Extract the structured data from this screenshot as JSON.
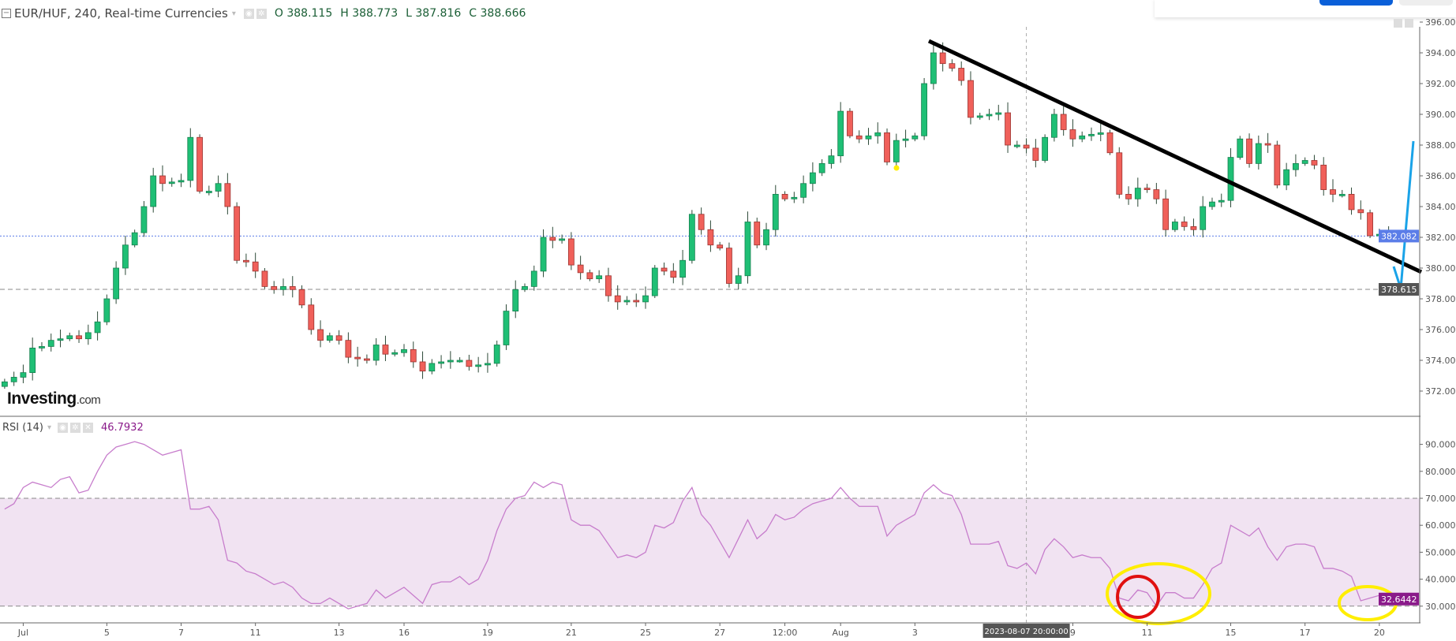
{
  "header": {
    "title": "EUR/HUF, 240, Real-time Currencies",
    "open": "O 388.115",
    "high": "H 388.773",
    "low": "L 387.816",
    "close": "C 388.666"
  },
  "logo": {
    "text": "Investing",
    "suffix": ".com"
  },
  "rsi_header": {
    "label": "RSI (14)",
    "value": "46.7932"
  },
  "colors": {
    "up": "#1fbf75",
    "down": "#f0605a",
    "rsi": "#c77dcc",
    "rsi_band": "#f1e3f2",
    "trend": "#000000",
    "arrow": "#1aa3e8",
    "highlight": "#ffee00",
    "circle": "#e01010",
    "last_price": "#5b7de8",
    "rsi_badge": "#8a1a8a"
  },
  "chart_data": [
    {
      "type": "candlestick",
      "title": "EUR/HUF, 240",
      "ylim": [
        370.5,
        396.5
      ],
      "yticks": [
        "396.000",
        "394.000",
        "392.000",
        "390.000",
        "388.000",
        "386.000",
        "384.000",
        "382.000",
        "380.000",
        "378.000",
        "376.000",
        "374.000",
        "372.000"
      ],
      "ytick_values": [
        396,
        394,
        392,
        390,
        388,
        386,
        384,
        382,
        380,
        378,
        376,
        374,
        372
      ],
      "last_price": "382.082",
      "last_price_value": 382.082,
      "level_label": "378.615",
      "level_value": 378.615,
      "first_open": 372.3,
      "closes": [
        372.6,
        372.9,
        373.2,
        374.8,
        374.9,
        375.3,
        375.4,
        375.6,
        375.4,
        375.8,
        376.5,
        378,
        380,
        381.5,
        382.3,
        384,
        386,
        385.5,
        385.6,
        385.7,
        388.5,
        385,
        385,
        385.5,
        384,
        380.5,
        380.4,
        379.8,
        378.8,
        378.6,
        378.8,
        378.6,
        377.6,
        376,
        375.3,
        375.6,
        375.3,
        374.2,
        374.1,
        374,
        375,
        374.4,
        374.5,
        374.7,
        373.9,
        373.3,
        373.8,
        373.9,
        374,
        374,
        373.6,
        373.7,
        373.8,
        375,
        377.2,
        378.6,
        378.8,
        379.8,
        382,
        381.8,
        381.9,
        380.2,
        379.7,
        379.3,
        379.5,
        378.2,
        377.8,
        377.9,
        377.8,
        378.2,
        380,
        379.8,
        379.4,
        380.5,
        383.5,
        382.5,
        381.5,
        381.3,
        379,
        379.5,
        383,
        381.5,
        382.5,
        384.8,
        384.5,
        384.6,
        385.5,
        386.2,
        386.8,
        387.3,
        390.2,
        388.6,
        388.4,
        388.6,
        388.8,
        386.9,
        388.3,
        388.4,
        388.6,
        392,
        394,
        393.3,
        393,
        392.2,
        389.8,
        389.9,
        390,
        390.1,
        388,
        388,
        387.8,
        387,
        388.5,
        390,
        389,
        388.4,
        388.6,
        388.7,
        388.8,
        387.5,
        384.8,
        384.5,
        385.2,
        385.1,
        384.5,
        382.5,
        383,
        382.7,
        382.5,
        384,
        384.3,
        384.4,
        387.2,
        388.4,
        386.8,
        388.1,
        388,
        385.4,
        386.4,
        386.8,
        387,
        386.7,
        385.1,
        384.8,
        384.8,
        383.8,
        383.6,
        382.1,
        382.2,
        382.1
      ]
    },
    {
      "type": "line",
      "title": "RSI (14)",
      "ylim": [
        25,
        95
      ],
      "yticks": [
        "90.0000",
        "80.0000",
        "70.0000",
        "60.0000",
        "50.0000",
        "40.0000",
        "30.0000"
      ],
      "ytick_values": [
        90,
        80,
        70,
        60,
        50,
        40,
        30
      ],
      "band": [
        30,
        70
      ],
      "last_value": "32.6442",
      "last_value_num": 32.6442,
      "values": [
        66,
        68,
        74,
        76,
        75,
        74,
        77,
        78,
        72,
        73,
        80,
        86,
        89,
        90,
        91,
        90,
        88,
        86,
        87,
        88,
        66,
        66,
        67,
        62,
        47,
        46,
        43,
        42,
        40,
        38,
        39,
        37,
        33,
        31,
        31,
        33,
        31,
        29,
        30,
        31,
        36,
        33,
        35,
        37,
        34,
        31,
        38,
        39,
        39,
        41,
        38,
        40,
        47,
        58,
        66,
        70,
        71,
        76,
        74,
        76,
        75,
        62,
        60,
        60,
        58,
        53,
        48,
        49,
        48,
        50,
        60,
        59,
        61,
        69,
        74,
        64,
        60,
        54,
        48,
        55,
        62,
        55,
        58,
        64,
        62,
        63,
        66,
        68,
        69,
        70,
        74,
        70,
        67,
        67,
        67,
        56,
        60,
        62,
        64,
        72,
        75,
        72,
        71,
        64,
        53,
        53,
        53,
        54,
        45,
        44,
        46,
        42,
        51,
        55,
        52,
        48,
        49,
        48,
        48,
        44,
        33,
        32,
        36,
        35,
        30,
        35,
        35,
        33,
        33,
        38,
        44,
        46,
        60,
        58,
        56,
        59,
        52,
        47,
        52,
        53,
        53,
        52,
        44,
        44,
        43,
        41,
        32,
        33,
        34,
        33
      ]
    }
  ],
  "xaxis": {
    "labels": [
      {
        "text": "Jul",
        "index": 2
      },
      {
        "text": "5",
        "index": 11
      },
      {
        "text": "7",
        "index": 19
      },
      {
        "text": "11",
        "index": 27
      },
      {
        "text": "13",
        "index": 36
      },
      {
        "text": "16",
        "index": 43
      },
      {
        "text": "19",
        "index": 52
      },
      {
        "text": "21",
        "index": 61
      },
      {
        "text": "25",
        "index": 69
      },
      {
        "text": "27",
        "index": 77
      },
      {
        "text": "12:00",
        "index": 84
      },
      {
        "text": "Aug",
        "index": 90
      },
      {
        "text": "3",
        "index": 98
      },
      {
        "text": "9",
        "index": 115
      },
      {
        "text": "11",
        "index": 123
      },
      {
        "text": "15",
        "index": 132
      },
      {
        "text": "17",
        "index": 140
      },
      {
        "text": "20",
        "index": 148
      }
    ],
    "crosshair_label": "2023-08-07 20:00:00",
    "crosshair_index": 110
  }
}
